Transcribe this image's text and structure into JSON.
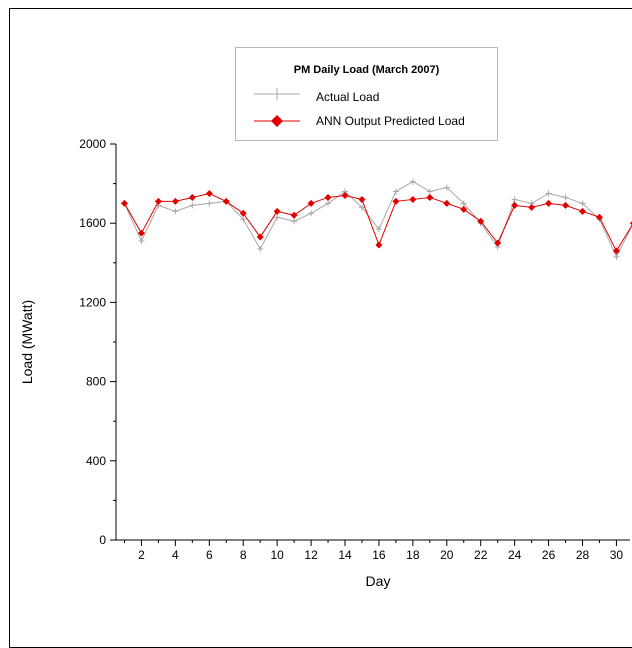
{
  "chart_data": {
    "type": "line",
    "title": "PM Daily Load (March 2007)",
    "xlabel": "Day",
    "ylabel": "Load (MWatt)",
    "xlim": [
      0.5,
      30.8
    ],
    "ylim": [
      0,
      2000
    ],
    "xticks": [
      2,
      4,
      6,
      8,
      10,
      12,
      14,
      16,
      18,
      20,
      22,
      24,
      26,
      28,
      30
    ],
    "yticks": [
      0,
      400,
      800,
      1200,
      1600,
      2000
    ],
    "grid": false,
    "legend_position": "top-center",
    "x": [
      1,
      2,
      3,
      4,
      5,
      6,
      7,
      8,
      9,
      10,
      11,
      12,
      13,
      14,
      15,
      16,
      17,
      18,
      19,
      20,
      21,
      22,
      23,
      24,
      25,
      26,
      27,
      28,
      29,
      30,
      31
    ],
    "series": [
      {
        "name": "Actual Load",
        "color": "#a8a8a8",
        "marker": "plus",
        "values": [
          1700,
          1510,
          1690,
          1660,
          1690,
          1700,
          1710,
          1620,
          1470,
          1630,
          1610,
          1650,
          1700,
          1760,
          1680,
          1570,
          1760,
          1810,
          1760,
          1780,
          1700,
          1600,
          1480,
          1720,
          1700,
          1750,
          1730,
          1700,
          1620,
          1430,
          1600
        ]
      },
      {
        "name": "ANN Output Predicted Load",
        "color": "#e00000",
        "marker": "diamond",
        "values": [
          1700,
          1550,
          1710,
          1710,
          1730,
          1750,
          1710,
          1650,
          1530,
          1660,
          1640,
          1700,
          1730,
          1740,
          1720,
          1490,
          1710,
          1720,
          1730,
          1700,
          1670,
          1610,
          1500,
          1690,
          1680,
          1700,
          1690,
          1660,
          1630,
          1460,
          1600
        ]
      }
    ]
  }
}
